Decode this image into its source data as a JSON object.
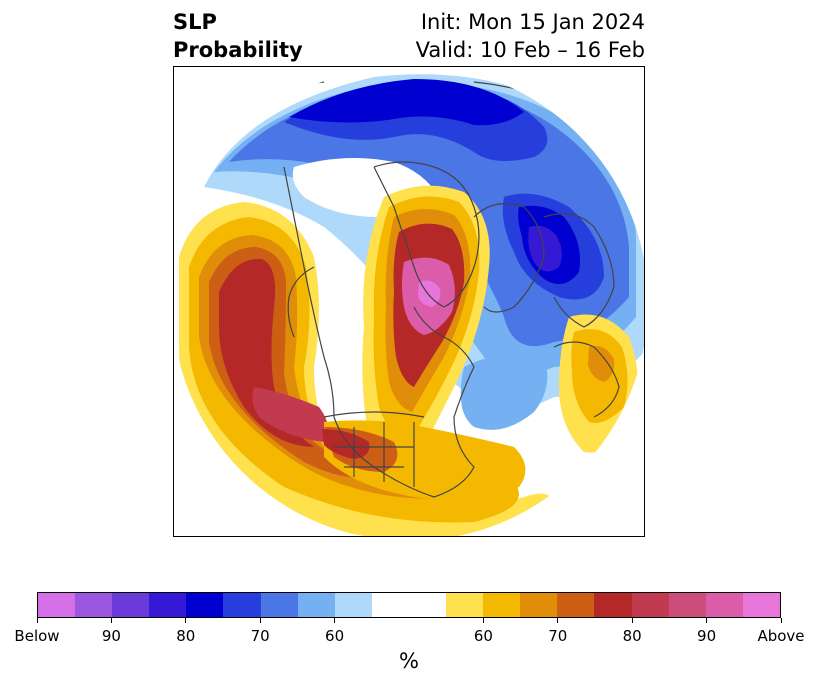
{
  "header": {
    "title_line1": "SLP",
    "title_line2": "Probability",
    "init_text": "Init: Mon 15 Jan 2024",
    "valid_text": "Valid: 10 Feb – 16 Feb"
  },
  "colorbar": {
    "unit": "%",
    "below_colors": [
      "#d46fe8",
      "#9b57e0",
      "#6a3bd9",
      "#3619d4",
      "#0000d1",
      "#263fdc",
      "#4a76e6",
      "#74b0f2",
      "#aed9fa"
    ],
    "neutral_color": "#ffffff",
    "above_colors": [
      "#ffe14d",
      "#f5b800",
      "#e08d0a",
      "#cc5f14",
      "#b52828",
      "#c23a50",
      "#cc4c7a",
      "#db5da9",
      "#e875da"
    ],
    "tick_labels": [
      "Below",
      "90",
      "80",
      "70",
      "60",
      "60",
      "70",
      "80",
      "90",
      "Above"
    ]
  },
  "map": {
    "projection": "north-polar-stereographic",
    "outline_color": "#444444"
  }
}
